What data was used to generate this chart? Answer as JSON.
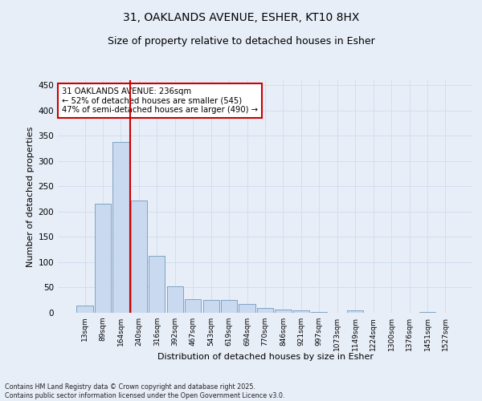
{
  "title_line1": "31, OAKLANDS AVENUE, ESHER, KT10 8HX",
  "title_line2": "Size of property relative to detached houses in Esher",
  "xlabel": "Distribution of detached houses by size in Esher",
  "ylabel": "Number of detached properties",
  "categories": [
    "13sqm",
    "89sqm",
    "164sqm",
    "240sqm",
    "316sqm",
    "392sqm",
    "467sqm",
    "543sqm",
    "619sqm",
    "694sqm",
    "770sqm",
    "846sqm",
    "921sqm",
    "997sqm",
    "1073sqm",
    "1149sqm",
    "1224sqm",
    "1300sqm",
    "1376sqm",
    "1451sqm",
    "1527sqm"
  ],
  "values": [
    15,
    215,
    338,
    222,
    113,
    53,
    27,
    26,
    25,
    18,
    10,
    7,
    5,
    2,
    0,
    4,
    0,
    0,
    0,
    2,
    0
  ],
  "bar_color": "#c9d9ef",
  "bar_edge_color": "#7099bb",
  "grid_color": "#d0dff0",
  "background_color": "#e8eef8",
  "red_line_x": 2.5,
  "red_line_color": "#cc0000",
  "annotation_text": "31 OAKLANDS AVENUE: 236sqm\n← 52% of detached houses are smaller (545)\n47% of semi-detached houses are larger (490) →",
  "annotation_box_color": "#ffffff",
  "annotation_box_edge": "#cc0000",
  "ylim": [
    0,
    460
  ],
  "yticks": [
    0,
    50,
    100,
    150,
    200,
    250,
    300,
    350,
    400,
    450
  ],
  "footer_line1": "Contains HM Land Registry data © Crown copyright and database right 2025.",
  "footer_line2": "Contains public sector information licensed under the Open Government Licence v3.0."
}
